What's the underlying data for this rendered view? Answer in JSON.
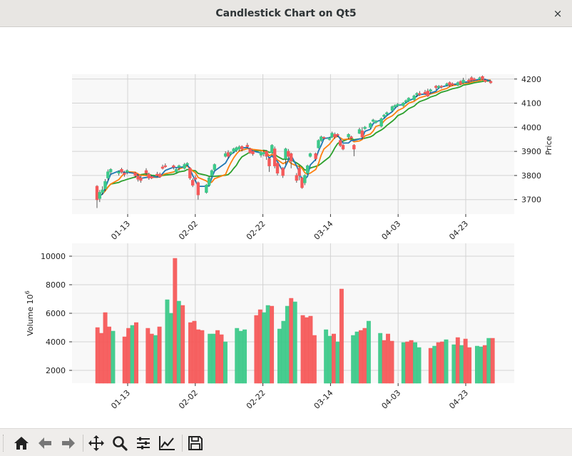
{
  "window": {
    "title": "Candlestick Chart on Qt5",
    "close_glyph": "×"
  },
  "toolbar": {
    "buttons": [
      {
        "name": "home-icon",
        "tooltip": "Home"
      },
      {
        "name": "back-arrow-icon",
        "tooltip": "Back"
      },
      {
        "name": "forward-arrow-icon",
        "tooltip": "Forward"
      },
      {
        "name": "pan-icon",
        "tooltip": "Pan"
      },
      {
        "name": "zoom-icon",
        "tooltip": "Zoom"
      },
      {
        "name": "configure-subplots-icon",
        "tooltip": "Subplots"
      },
      {
        "name": "edit-curves-icon",
        "tooltip": "Customize"
      },
      {
        "name": "save-icon",
        "tooltip": "Save"
      }
    ]
  },
  "colors": {
    "up": "#3dc98a",
    "down": "#f55a5a",
    "ma_short": "#1f77b4",
    "ma_mid": "#ff7f0e",
    "ma_long": "#2ca02c",
    "axes_bg": "#f8f8f8",
    "grid": "#d3d3d3"
  },
  "chart_data": [
    {
      "type": "candlestick",
      "ylabel": "Price",
      "ylim": [
        3640,
        4220
      ],
      "y_ticks": [
        3700,
        3800,
        3900,
        4000,
        4100,
        4200
      ],
      "x_tick_labels": [
        "01-13",
        "02-02",
        "02-22",
        "03-14",
        "04-03",
        "04-23"
      ],
      "x_tick_positions": [
        13,
        33,
        53,
        73,
        93,
        113
      ],
      "xlim": [
        -3,
        125
      ],
      "grid": true,
      "series_ma": [
        "ma_short",
        "ma_mid",
        "ma_long"
      ],
      "candles": [
        [
          0,
          3755,
          3700,
          3760,
          3665
        ],
        [
          1,
          3705,
          3730,
          3740,
          3690
        ],
        [
          2,
          3730,
          3740,
          3755,
          3720
        ],
        [
          3,
          3745,
          3775,
          3785,
          3735
        ],
        [
          4,
          3790,
          3815,
          3825,
          3780
        ],
        [
          5,
          3815,
          3825,
          3830,
          3805
        ],
        [
          8,
          3810,
          3815,
          3820,
          3800
        ],
        [
          9,
          3825,
          3815,
          3832,
          3808
        ],
        [
          10,
          3810,
          3805,
          3820,
          3795
        ],
        [
          11,
          3815,
          3820,
          3825,
          3805
        ],
        [
          14,
          3810,
          3800,
          3815,
          3790
        ],
        [
          15,
          3798,
          3785,
          3805,
          3775
        ],
        [
          16,
          3790,
          3780,
          3800,
          3770
        ],
        [
          18,
          3820,
          3810,
          3830,
          3800
        ],
        [
          19,
          3805,
          3790,
          3812,
          3782
        ],
        [
          20,
          3795,
          3790,
          3800,
          3785
        ],
        [
          22,
          3805,
          3800,
          3815,
          3795
        ],
        [
          23,
          3805,
          3795,
          3812,
          3790
        ],
        [
          24,
          3835,
          3830,
          3845,
          3825
        ],
        [
          25,
          3840,
          3838,
          3850,
          3832
        ],
        [
          28,
          3840,
          3835,
          3845,
          3825
        ],
        [
          29,
          3815,
          3825,
          3830,
          3810
        ],
        [
          30,
          3835,
          3840,
          3845,
          3820
        ],
        [
          32,
          3830,
          3845,
          3852,
          3825
        ],
        [
          33,
          3845,
          3850,
          3855,
          3840
        ],
        [
          34,
          3830,
          3790,
          3835,
          3782
        ],
        [
          35,
          3780,
          3760,
          3788,
          3752
        ],
        [
          36,
          3790,
          3785,
          3800,
          3775
        ],
        [
          37,
          3770,
          3720,
          3775,
          3700
        ],
        [
          40,
          3730,
          3760,
          3765,
          3725
        ],
        [
          41,
          3760,
          3790,
          3795,
          3755
        ],
        [
          42,
          3800,
          3820,
          3825,
          3795
        ],
        [
          43,
          3825,
          3845,
          3850,
          3820
        ],
        [
          47,
          3880,
          3890,
          3900,
          3875
        ],
        [
          48,
          3895,
          3880,
          3905,
          3870
        ],
        [
          49,
          3890,
          3895,
          3900,
          3885
        ],
        [
          50,
          3900,
          3910,
          3915,
          3895
        ],
        [
          51,
          3905,
          3915,
          3920,
          3898
        ],
        [
          52,
          3910,
          3918,
          3925,
          3900
        ],
        [
          53,
          3920,
          3910,
          3925,
          3900
        ],
        [
          55,
          3925,
          3920,
          3935,
          3915
        ],
        [
          56,
          3910,
          3895,
          3915,
          3890
        ],
        [
          57,
          3900,
          3890,
          3905,
          3882
        ],
        [
          60,
          3885,
          3895,
          3900,
          3875
        ],
        [
          61,
          3890,
          3895,
          3905,
          3880
        ],
        [
          62,
          3900,
          3880,
          3905,
          3865
        ],
        [
          63,
          3870,
          3840,
          3875,
          3815
        ],
        [
          64,
          3895,
          3925,
          3930,
          3890
        ],
        [
          65,
          3910,
          3840,
          3920,
          3830
        ],
        [
          66,
          3850,
          3810,
          3855,
          3800
        ],
        [
          68,
          3830,
          3800,
          3835,
          3790
        ],
        [
          69,
          3870,
          3910,
          3915,
          3845
        ],
        [
          70,
          3900,
          3880,
          3910,
          3870
        ],
        [
          71,
          3890,
          3860,
          3895,
          3830
        ],
        [
          73,
          3800,
          3780,
          3810,
          3770
        ],
        [
          74,
          3830,
          3800,
          3840,
          3780
        ],
        [
          75,
          3790,
          3750,
          3795,
          3745
        ],
        [
          76,
          3770,
          3800,
          3805,
          3760
        ],
        [
          77,
          3810,
          3840,
          3845,
          3805
        ],
        [
          78,
          3880,
          3890,
          3895,
          3875
        ],
        [
          80,
          3890,
          3870,
          3895,
          3860
        ],
        [
          81,
          3915,
          3945,
          3950,
          3912
        ],
        [
          82,
          3945,
          3960,
          3965,
          3940
        ],
        [
          83,
          3958,
          3955,
          3962,
          3948
        ],
        [
          85,
          3950,
          3955,
          3960,
          3945
        ],
        [
          86,
          3960,
          3975,
          3982,
          3955
        ],
        [
          87,
          3970,
          3960,
          3978,
          3952
        ],
        [
          88,
          3970,
          3968,
          3975,
          3960
        ],
        [
          89,
          3945,
          3925,
          3950,
          3918
        ],
        [
          90,
          3925,
          3910,
          3930,
          3905
        ],
        [
          92,
          3960,
          3970,
          3975,
          3950
        ],
        [
          93,
          3960,
          3955,
          3965,
          3950
        ],
        [
          94,
          3925,
          3910,
          3930,
          3880
        ],
        [
          96,
          3975,
          3990,
          3998,
          3972
        ],
        [
          97,
          3985,
          3960,
          4000,
          3950
        ],
        [
          98,
          3995,
          4000,
          4005,
          3990
        ],
        [
          100,
          4000,
          4015,
          4020,
          3995
        ],
        [
          101,
          4025,
          4030,
          4035,
          4020
        ],
        [
          102,
          4020,
          4025,
          4030,
          4015
        ],
        [
          104,
          4005,
          4035,
          4040,
          4000
        ],
        [
          105,
          4045,
          4050,
          4055,
          4040
        ],
        [
          106,
          4055,
          4060,
          4065,
          4050
        ],
        [
          108,
          4070,
          4085,
          4090,
          4065
        ],
        [
          109,
          4085,
          4090,
          4095,
          4080
        ],
        [
          110,
          4090,
          4095,
          4100,
          4085
        ],
        [
          112,
          4090,
          4100,
          4105,
          4085
        ],
        [
          113,
          4105,
          4110,
          4115,
          4100
        ],
        [
          114,
          4110,
          4120,
          4125,
          4105
        ],
        [
          116,
          4115,
          4130,
          4135,
          4110
        ],
        [
          117,
          4135,
          4140,
          4145,
          4125
        ],
        [
          118,
          4140,
          4135,
          4150,
          4130
        ],
        [
          120,
          4145,
          4140,
          4155,
          4135
        ],
        [
          121,
          4150,
          4130,
          4160,
          4125
        ],
        [
          122,
          4150,
          4155,
          4160,
          4140
        ],
        [
          124,
          4170,
          4165,
          4175,
          4155
        ],
        [
          125,
          4165,
          4170,
          4175,
          4160
        ],
        [
          126,
          4170,
          4168,
          4175,
          4160
        ],
        [
          128,
          4175,
          4180,
          4185,
          4170
        ],
        [
          129,
          4185,
          4175,
          4190,
          4168
        ],
        [
          130,
          4180,
          4178,
          4186,
          4172
        ],
        [
          132,
          4175,
          4185,
          4190,
          4170
        ],
        [
          133,
          4190,
          4180,
          4195,
          4175
        ],
        [
          134,
          4185,
          4195,
          4205,
          4180
        ],
        [
          136,
          4195,
          4190,
          4202,
          4185
        ],
        [
          137,
          4205,
          4195,
          4212,
          4190
        ],
        [
          138,
          4200,
          4198,
          4206,
          4195
        ],
        [
          140,
          4200,
          4205,
          4210,
          4195
        ],
        [
          141,
          4210,
          4200,
          4215,
          4195
        ],
        [
          142,
          4195,
          4190,
          4200,
          4185
        ],
        [
          144,
          4190,
          4185,
          4195,
          4180
        ]
      ]
    },
    {
      "type": "bar",
      "ylabel": "Volume  10",
      "ylabel_exp": "6",
      "ylim": [
        1100,
        10900
      ],
      "y_ticks": [
        2000,
        4000,
        6000,
        8000,
        10000
      ],
      "x_tick_labels": [
        "01-13",
        "02-02",
        "02-22",
        "03-14",
        "04-03",
        "04-23"
      ],
      "grid": true,
      "bars": [
        [
          0,
          5000,
          0
        ],
        [
          1,
          4600,
          0
        ],
        [
          2,
          6050,
          0
        ],
        [
          3,
          5050,
          0
        ],
        [
          4,
          4750,
          1
        ],
        [
          7,
          4350,
          0
        ],
        [
          8,
          4950,
          0
        ],
        [
          9,
          5150,
          1
        ],
        [
          10,
          5350,
          0
        ],
        [
          13,
          4950,
          0
        ],
        [
          14,
          4550,
          0
        ],
        [
          15,
          4450,
          1
        ],
        [
          16,
          5050,
          0
        ],
        [
          18,
          6950,
          1
        ],
        [
          19,
          6000,
          1
        ],
        [
          20,
          9850,
          0
        ],
        [
          21,
          6850,
          1
        ],
        [
          22,
          6550,
          0
        ],
        [
          24,
          5350,
          0
        ],
        [
          25,
          5450,
          0
        ],
        [
          26,
          4850,
          0
        ],
        [
          27,
          4800,
          0
        ],
        [
          29,
          4550,
          1
        ],
        [
          30,
          4550,
          1
        ],
        [
          31,
          4800,
          0
        ],
        [
          32,
          4500,
          0
        ],
        [
          33,
          4000,
          1
        ],
        [
          36,
          4950,
          1
        ],
        [
          37,
          4750,
          1
        ],
        [
          38,
          4850,
          1
        ],
        [
          41,
          5850,
          0
        ],
        [
          42,
          6250,
          0
        ],
        [
          43,
          6050,
          1
        ],
        [
          44,
          6550,
          1
        ],
        [
          45,
          6500,
          0
        ],
        [
          47,
          4900,
          1
        ],
        [
          48,
          5450,
          1
        ],
        [
          49,
          6500,
          1
        ],
        [
          50,
          7050,
          0
        ],
        [
          51,
          6800,
          1
        ],
        [
          53,
          5850,
          0
        ],
        [
          54,
          5700,
          0
        ],
        [
          55,
          5800,
          0
        ],
        [
          56,
          4450,
          0
        ],
        [
          59,
          4850,
          1
        ],
        [
          60,
          4400,
          1
        ],
        [
          61,
          4550,
          0
        ],
        [
          62,
          4000,
          1
        ],
        [
          63,
          7700,
          0
        ],
        [
          66,
          4450,
          1
        ],
        [
          67,
          4700,
          1
        ],
        [
          68,
          4800,
          0
        ],
        [
          69,
          4950,
          0
        ],
        [
          70,
          5450,
          1
        ],
        [
          73,
          4600,
          1
        ],
        [
          74,
          4100,
          0
        ],
        [
          75,
          4550,
          0
        ],
        [
          76,
          4050,
          0
        ],
        [
          79,
          3950,
          1
        ],
        [
          80,
          4000,
          0
        ],
        [
          81,
          4100,
          0
        ],
        [
          82,
          3950,
          1
        ],
        [
          83,
          3600,
          1
        ],
        [
          86,
          3550,
          0
        ],
        [
          87,
          3700,
          1
        ],
        [
          88,
          3950,
          0
        ],
        [
          89,
          4000,
          0
        ],
        [
          90,
          4150,
          1
        ],
        [
          92,
          3800,
          1
        ],
        [
          93,
          4300,
          0
        ],
        [
          94,
          3750,
          1
        ],
        [
          95,
          4200,
          0
        ],
        [
          96,
          3600,
          0
        ],
        [
          98,
          3700,
          1
        ],
        [
          99,
          3650,
          1
        ],
        [
          100,
          3750,
          0
        ],
        [
          101,
          4250,
          1
        ],
        [
          102,
          4250,
          0
        ]
      ]
    }
  ]
}
